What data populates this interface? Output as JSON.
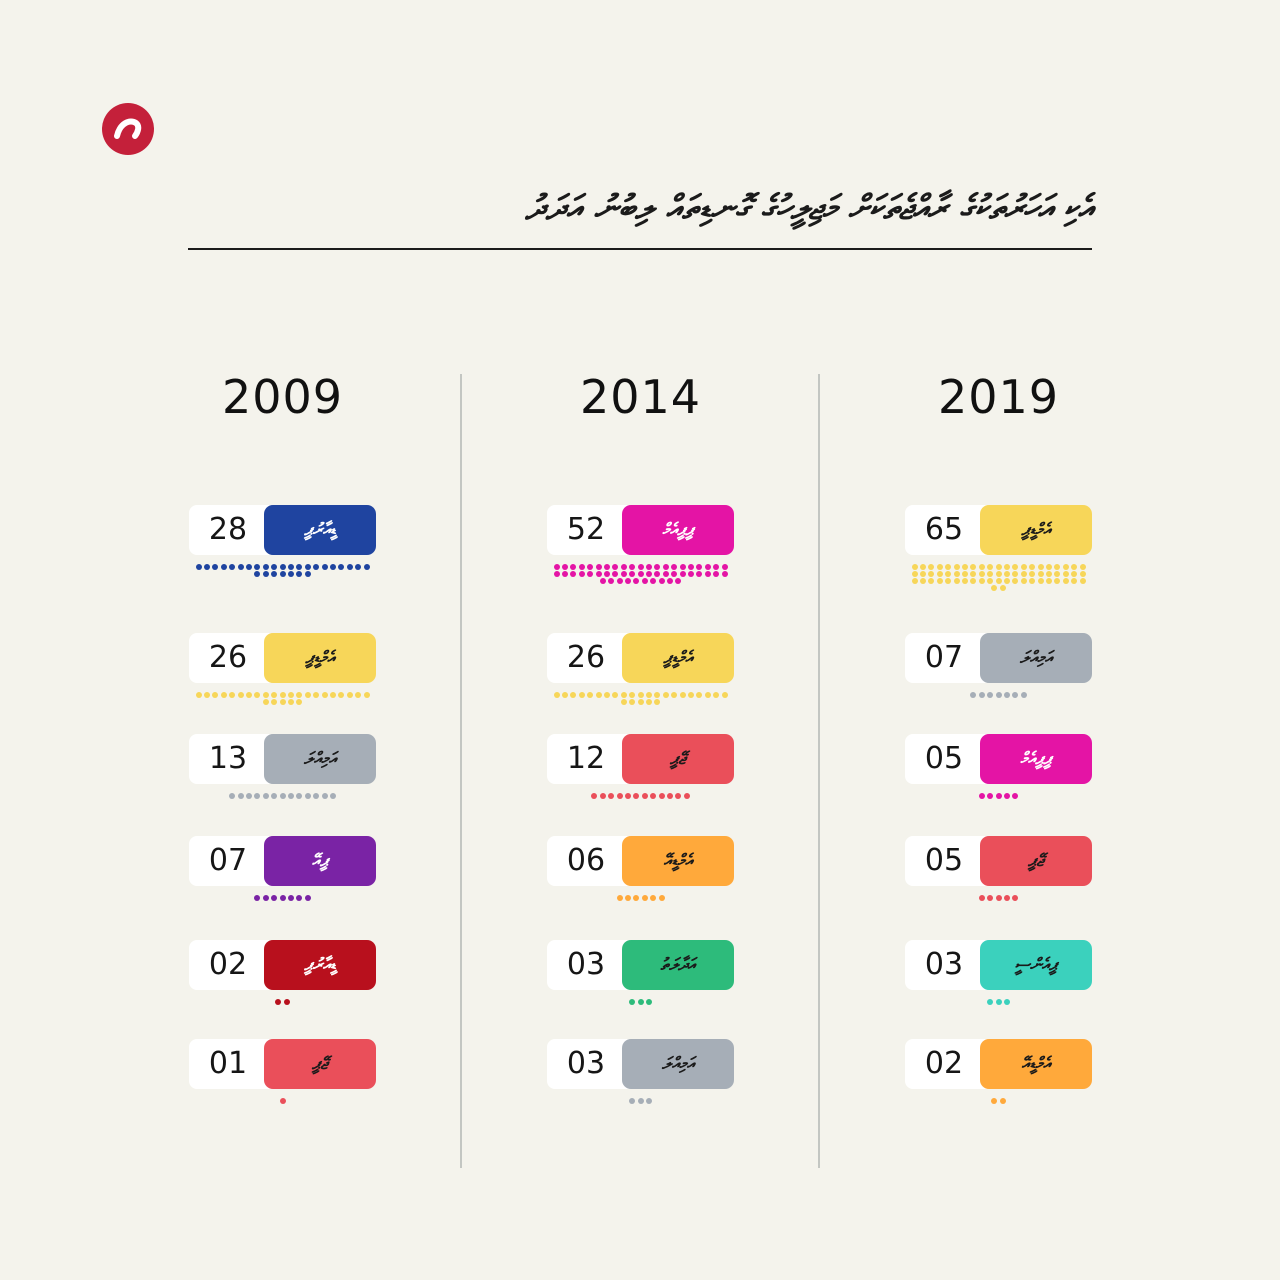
{
  "page": {
    "logo_icon": "brand-logo-icon",
    "title": "އެކި އަހަރުތަކުގެ ރާއްޖެތަކަށް މަޖިލީހުގެ ގޮނޑިތައް ލިބުނު އަދަދު"
  },
  "chart_data": {
    "type": "table",
    "columns": [
      {
        "year": "2009",
        "entries": [
          {
            "count": "28",
            "value": 28,
            "party": "ޑީއާރުޕީ",
            "color": "#1f44a0",
            "text_color": "#ffffff"
          },
          {
            "count": "26",
            "value": 26,
            "party": "އެމްޑީޕީ",
            "color": "#f7d659",
            "text_color": "#1a1a1a"
          },
          {
            "count": "13",
            "value": 13,
            "party": "އަމިއްލަ",
            "color": "#a6aeb7",
            "text_color": "#1a1a1a"
          },
          {
            "count": "07",
            "value": 7,
            "party": "ޕީއޭ",
            "color": "#7a23a5",
            "text_color": "#ffffff"
          },
          {
            "count": "02",
            "value": 2,
            "party": "ޑީއާރުޕީ",
            "color": "#b8101d",
            "text_color": "#ffffff"
          },
          {
            "count": "01",
            "value": 1,
            "party": "ޖޭޕީ",
            "color": "#ea4f5a",
            "text_color": "#1a1a1a"
          }
        ]
      },
      {
        "year": "2014",
        "entries": [
          {
            "count": "52",
            "value": 52,
            "party": "ޕީޕީއެމް",
            "color": "#e414a5",
            "text_color": "#ffffff"
          },
          {
            "count": "26",
            "value": 26,
            "party": "އެމްޑީޕީ",
            "color": "#f7d659",
            "text_color": "#1a1a1a"
          },
          {
            "count": "12",
            "value": 12,
            "party": "ޖޭޕީ",
            "color": "#ea4f5a",
            "text_color": "#1a1a1a"
          },
          {
            "count": "06",
            "value": 6,
            "party": "އެމްޑީއޭ",
            "color": "#ffa93b",
            "text_color": "#1a1a1a"
          },
          {
            "count": "03",
            "value": 3,
            "party": "އަދާލަތު",
            "color": "#2dbb7b",
            "text_color": "#1a1a1a"
          },
          {
            "count": "03",
            "value": 3,
            "party": "އަމިއްލަ",
            "color": "#a6aeb7",
            "text_color": "#1a1a1a"
          }
        ]
      },
      {
        "year": "2019",
        "entries": [
          {
            "count": "65",
            "value": 65,
            "party": "އެމްޑީޕީ",
            "color": "#f7d659",
            "text_color": "#1a1a1a"
          },
          {
            "count": "07",
            "value": 7,
            "party": "އަމިއްލަ",
            "color": "#a6aeb7",
            "text_color": "#1a1a1a"
          },
          {
            "count": "05",
            "value": 5,
            "party": "ޕީޕީއެމް",
            "color": "#e414a5",
            "text_color": "#ffffff"
          },
          {
            "count": "05",
            "value": 5,
            "party": "ޖޭޕީ",
            "color": "#ea4f5a",
            "text_color": "#1a1a1a"
          },
          {
            "count": "03",
            "value": 3,
            "party": "ޕީއެންސީ",
            "color": "#3bd1bd",
            "text_color": "#1a1a1a"
          },
          {
            "count": "02",
            "value": 2,
            "party": "އެމްޑީއޭ",
            "color": "#ffa93b",
            "text_color": "#1a1a1a"
          }
        ]
      }
    ]
  }
}
